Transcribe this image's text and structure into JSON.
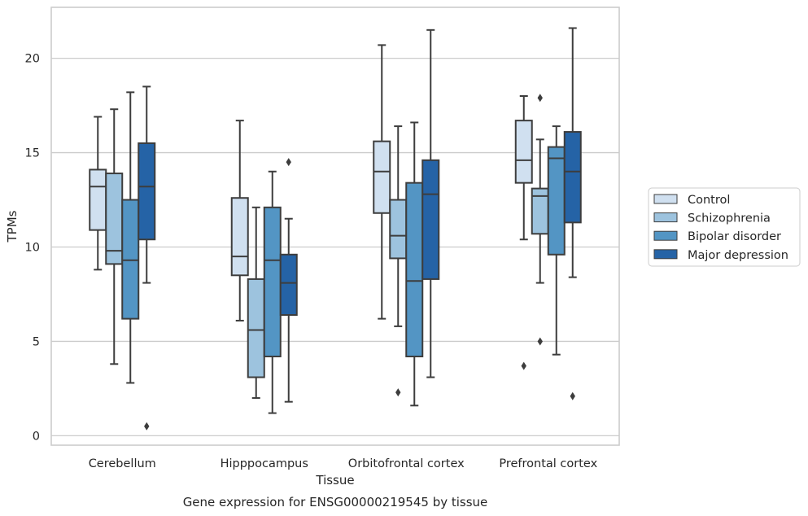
{
  "chart_data": {
    "type": "box",
    "title": "",
    "xlabel": "Tissue",
    "ylabel": "TPMs",
    "caption": "Gene expression for ENSG00000219545 by tissue",
    "ylim": [
      -0.5,
      22.7
    ],
    "yticks": [
      0,
      5,
      10,
      15,
      20
    ],
    "grid": "horizontal",
    "legend_position": "right",
    "categories": [
      "Cerebellum",
      "Hipppocampus",
      "Orbitofrontal cortex",
      "Prefrontal cortex"
    ],
    "series": [
      {
        "name": "Control",
        "color": "#d0e0f0",
        "boxes": [
          {
            "whislo": 8.8,
            "q1": 10.9,
            "med": 13.2,
            "q3": 14.1,
            "whishi": 16.9,
            "fliers": []
          },
          {
            "whislo": 6.1,
            "q1": 8.5,
            "med": 9.5,
            "q3": 12.6,
            "whishi": 16.7,
            "fliers": []
          },
          {
            "whislo": 6.2,
            "q1": 11.8,
            "med": 14.0,
            "q3": 15.6,
            "whishi": 20.7,
            "fliers": []
          },
          {
            "whislo": 10.4,
            "q1": 13.4,
            "med": 14.6,
            "q3": 16.7,
            "whishi": 18.0,
            "fliers": [
              3.7
            ]
          }
        ]
      },
      {
        "name": "Schizophrenia",
        "color": "#9dc3de",
        "boxes": [
          {
            "whislo": 3.8,
            "q1": 9.1,
            "med": 9.8,
            "q3": 13.9,
            "whishi": 17.3,
            "fliers": []
          },
          {
            "whislo": 2.0,
            "q1": 3.1,
            "med": 5.6,
            "q3": 8.3,
            "whishi": 12.1,
            "fliers": []
          },
          {
            "whislo": 5.8,
            "q1": 9.4,
            "med": 10.6,
            "q3": 12.5,
            "whishi": 16.4,
            "fliers": [
              2.3
            ]
          },
          {
            "whislo": 8.1,
            "q1": 10.7,
            "med": 12.7,
            "q3": 13.1,
            "whishi": 15.7,
            "fliers": [
              5.0,
              17.9
            ]
          }
        ]
      },
      {
        "name": "Bipolar disorder",
        "color": "#5395c4",
        "boxes": [
          {
            "whislo": 2.8,
            "q1": 6.2,
            "med": 9.3,
            "q3": 12.5,
            "whishi": 18.2,
            "fliers": []
          },
          {
            "whislo": 1.2,
            "q1": 4.2,
            "med": 9.3,
            "q3": 12.1,
            "whishi": 14.0,
            "fliers": []
          },
          {
            "whislo": 1.6,
            "q1": 4.2,
            "med": 8.2,
            "q3": 13.4,
            "whishi": 16.6,
            "fliers": []
          },
          {
            "whislo": 4.3,
            "q1": 9.6,
            "med": 14.7,
            "q3": 15.3,
            "whishi": 16.4,
            "fliers": []
          }
        ]
      },
      {
        "name": "Major depression",
        "color": "#2563a6",
        "boxes": [
          {
            "whislo": 8.1,
            "q1": 10.4,
            "med": 13.2,
            "q3": 15.5,
            "whishi": 18.5,
            "fliers": [
              0.5
            ]
          },
          {
            "whislo": 1.8,
            "q1": 6.4,
            "med": 8.1,
            "q3": 9.6,
            "whishi": 11.5,
            "fliers": [
              14.5
            ]
          },
          {
            "whislo": 3.1,
            "q1": 8.3,
            "med": 12.8,
            "q3": 14.6,
            "whishi": 21.5,
            "fliers": []
          },
          {
            "whislo": 8.4,
            "q1": 11.3,
            "med": 14.0,
            "q3": 16.1,
            "whishi": 21.6,
            "fliers": [
              2.1
            ]
          }
        ]
      }
    ]
  }
}
